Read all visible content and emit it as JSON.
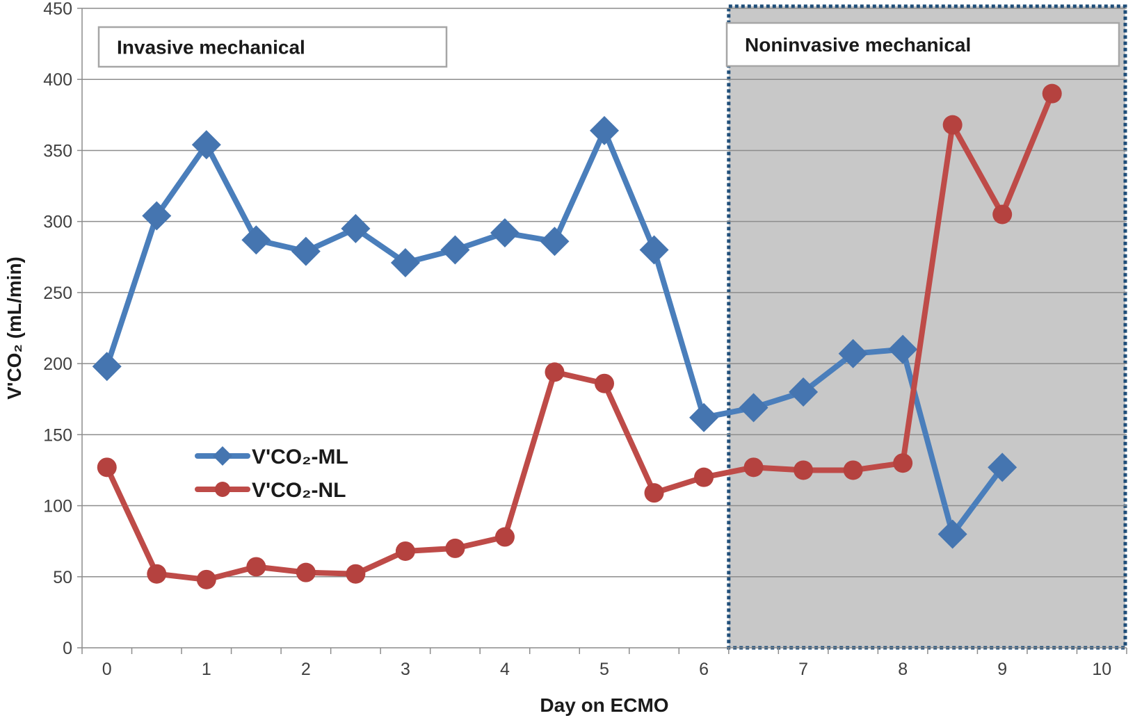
{
  "chart_data": {
    "type": "line",
    "xlabel": "Day on ECMO",
    "ylabel": "V'CO₂ (mL/min)",
    "ylim": [
      0,
      450
    ],
    "xlim": [
      -0.25,
      10.25
    ],
    "y_ticks": [
      0,
      50,
      100,
      150,
      200,
      250,
      300,
      350,
      400,
      450
    ],
    "x_tick_labels": [
      {
        "value": 0,
        "label": "0"
      },
      {
        "value": 1,
        "label": "1"
      },
      {
        "value": 2,
        "label": "2"
      },
      {
        "value": 3,
        "label": "3"
      },
      {
        "value": 4,
        "label": "4"
      },
      {
        "value": 5,
        "label": "5"
      },
      {
        "value": 6,
        "label": "6"
      },
      {
        "value": 7,
        "label": "7"
      },
      {
        "value": 8,
        "label": "8"
      },
      {
        "value": 9,
        "label": "9"
      },
      {
        "value": 10,
        "label": "10"
      }
    ],
    "grid": "horizontal",
    "legend_position": "left-middle",
    "regions": [
      {
        "label": "Invasive mechanical",
        "x_from": -0.25,
        "x_to": 6.25,
        "shaded": false
      },
      {
        "label": "Noninvasive mechanical",
        "x_from": 6.25,
        "x_to": 10.25,
        "shaded": true,
        "fill": "#c8c8c8",
        "border": "#1f4e79"
      }
    ],
    "series": [
      {
        "name": "V'CO₂-ML",
        "marker": "diamond",
        "color": "#4a7ebb",
        "x": [
          0,
          0.5,
          1,
          1.5,
          2,
          2.5,
          3,
          3.5,
          4,
          4.5,
          5,
          5.5,
          6,
          6.5,
          7,
          7.5,
          8,
          8.5,
          9,
          9.5
        ],
        "values": [
          198,
          304,
          354,
          287,
          279,
          295,
          271,
          280,
          292,
          286,
          364,
          280,
          162,
          169,
          180,
          207,
          210,
          80,
          127,
          null
        ]
      },
      {
        "name": "V'CO₂-NL",
        "marker": "circle",
        "color": "#be4b48",
        "x": [
          0,
          0.5,
          1,
          1.5,
          2,
          2.5,
          3,
          3.5,
          4,
          4.5,
          5,
          5.5,
          6,
          6.5,
          7,
          7.5,
          8,
          8.5,
          9,
          9.5
        ],
        "values": [
          127,
          52,
          48,
          57,
          53,
          52,
          68,
          70,
          78,
          194,
          186,
          109,
          120,
          127,
          125,
          125,
          130,
          368,
          305,
          390
        ]
      }
    ]
  }
}
